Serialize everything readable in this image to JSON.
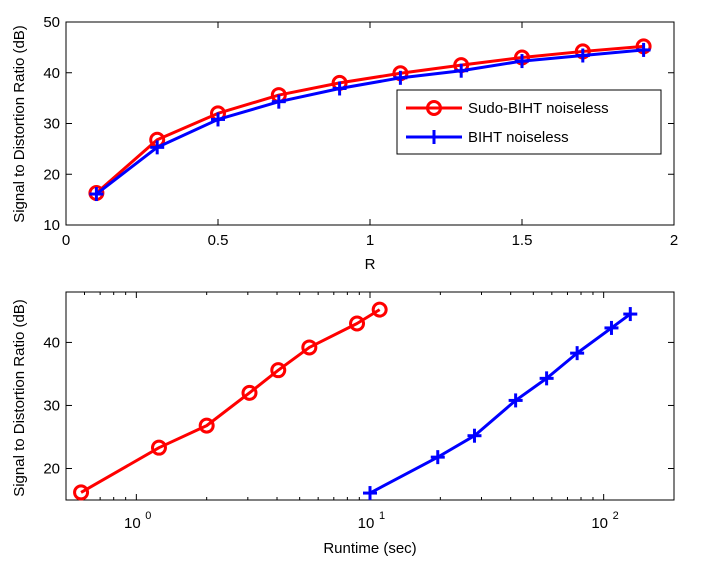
{
  "chart_data": [
    {
      "type": "line",
      "xlabel": "R",
      "ylabel": "Signal to Distortion Ratio (dB)",
      "xlim": [
        0,
        2
      ],
      "ylim": [
        10,
        50
      ],
      "xscale": "linear",
      "xticks": [
        0,
        0.5,
        1,
        1.5,
        2
      ],
      "xtick_labels": [
        "0",
        "0.5",
        "1",
        "1.5",
        "2"
      ],
      "yticks": [
        10,
        20,
        30,
        40,
        50
      ],
      "ytick_labels": [
        "10",
        "20",
        "30",
        "40",
        "50"
      ],
      "grid": false,
      "legend_position": "middle-right",
      "series": [
        {
          "name": "Sudo-BIHT noiseless",
          "color": "#ff0000",
          "marker": "circle",
          "x": [
            0.1,
            0.3,
            0.5,
            0.7,
            0.9,
            1.1,
            1.3,
            1.5,
            1.7,
            1.9
          ],
          "y": [
            16.3,
            26.8,
            32.0,
            35.6,
            38.0,
            39.9,
            41.5,
            43.0,
            44.2,
            45.2
          ]
        },
        {
          "name": "BIHT noiseless",
          "color": "#0000ff",
          "marker": "plus",
          "x": [
            0.1,
            0.3,
            0.5,
            0.7,
            0.9,
            1.1,
            1.3,
            1.5,
            1.7,
            1.9
          ],
          "y": [
            16.1,
            25.3,
            30.8,
            34.3,
            36.9,
            39.0,
            40.4,
            42.3,
            43.4,
            44.5
          ]
        }
      ]
    },
    {
      "type": "line",
      "xlabel": "Runtime (sec)",
      "ylabel": "Signal to Distortion Ratio (dB)",
      "xscale": "log",
      "xlim": [
        0.5,
        200
      ],
      "ylim": [
        15,
        48
      ],
      "xticks": [
        1,
        10,
        100
      ],
      "xtick_labels": [
        {
          "base": "10",
          "exp": "0"
        },
        {
          "base": "10",
          "exp": "1"
        },
        {
          "base": "10",
          "exp": "2"
        }
      ],
      "yticks": [
        20,
        30,
        40
      ],
      "ytick_labels": [
        "20",
        "30",
        "40"
      ],
      "grid": false,
      "series": [
        {
          "color": "#ff0000",
          "marker": "circle",
          "x": [
            0.58,
            1.25,
            2.0,
            3.05,
            4.05,
            5.5,
            8.8,
            11.0
          ],
          "y": [
            16.2,
            23.3,
            26.8,
            32.0,
            35.6,
            39.2,
            43.0,
            45.2
          ]
        },
        {
          "color": "#0000ff",
          "marker": "plus",
          "x": [
            10.0,
            19.5,
            28.0,
            42.0,
            57.0,
            77.0,
            108.0,
            130.0
          ],
          "y": [
            16.1,
            21.8,
            25.2,
            30.8,
            34.3,
            38.3,
            42.3,
            44.5
          ]
        }
      ]
    }
  ]
}
